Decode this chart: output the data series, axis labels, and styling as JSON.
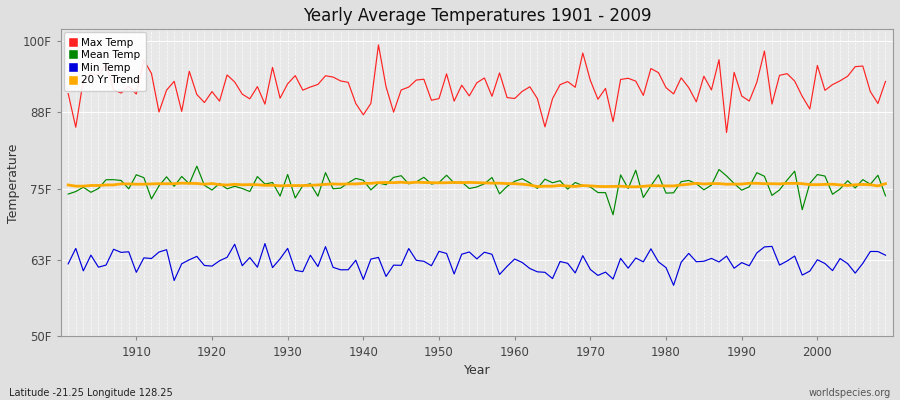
{
  "title": "Yearly Average Temperatures 1901 - 2009",
  "xlabel": "Year",
  "ylabel": "Temperature",
  "start_year": 1901,
  "end_year": 2009,
  "yticks": [
    50,
    63,
    75,
    88,
    100
  ],
  "ytick_labels": [
    "50F",
    "63F",
    "75F",
    "88F",
    "100F"
  ],
  "ylim": [
    50,
    102
  ],
  "xlim": [
    1900,
    2010
  ],
  "background_color": "#e0e0e0",
  "plot_bg_color": "#e8e8e8",
  "grid_color": "#ffffff",
  "max_temp_color": "#ff2222",
  "mean_temp_color": "#008800",
  "min_temp_color": "#0000dd",
  "trend_color": "#ffaa00",
  "legend_labels": [
    "Max Temp",
    "Mean Temp",
    "Min Temp",
    "20 Yr Trend"
  ],
  "footnote_left": "Latitude -21.25 Longitude 128.25",
  "footnote_right": "worldspecies.org",
  "max_temp_base": 92.0,
  "mean_temp_base": 75.8,
  "min_temp_base": 62.8,
  "max_temp_std": 2.2,
  "mean_temp_std": 1.2,
  "min_temp_std": 1.5,
  "seed": 17
}
